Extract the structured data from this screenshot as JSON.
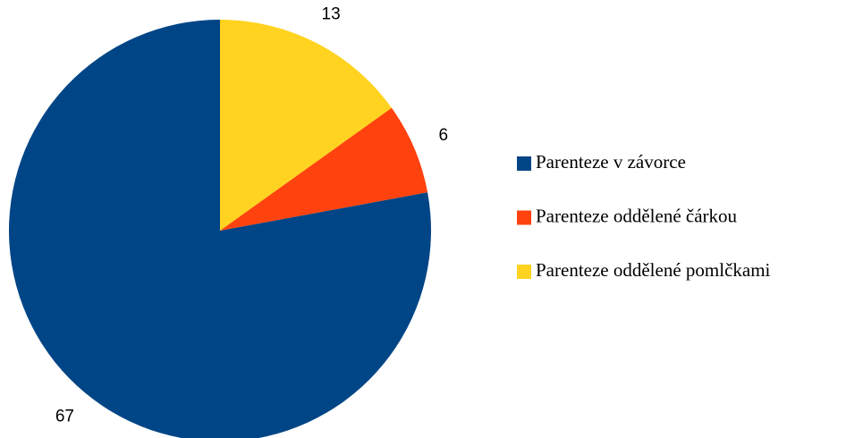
{
  "chart_data": {
    "type": "pie",
    "categories": [
      "Parenteze v závorce",
      "Parenteze oddělené čárkou",
      "Parenteze oddělené pomlčkami"
    ],
    "values": [
      67,
      6,
      13
    ],
    "colors": [
      "#004586",
      "#ff420e",
      "#ffd320"
    ],
    "legend": "right"
  }
}
